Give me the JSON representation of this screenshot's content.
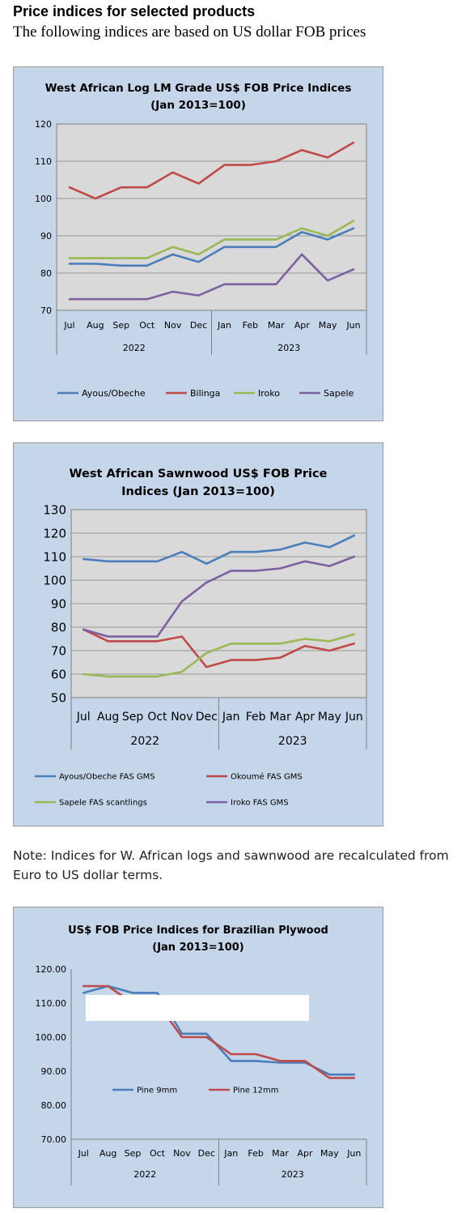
{
  "page": {
    "heading": "Price indices for selected products",
    "subheading": "The following indices are based on US dollar FOB prices",
    "note": "Note: Indices for W. African logs and sawnwood are recalculated from Euro to US dollar terms."
  },
  "chart_data": [
    {
      "type": "line",
      "title_line1": "West African Log LM Grade US$ FOB Price Indices",
      "title_line2": "(Jan 2013=100)",
      "categories": [
        "Jul",
        "Aug",
        "Sep",
        "Oct",
        "Nov",
        "Dec",
        "Jan",
        "Feb",
        "Mar",
        "Apr",
        "May",
        "Jun"
      ],
      "year_groups": [
        {
          "label": "2022",
          "span": 6
        },
        {
          "label": "2023",
          "span": 6
        }
      ],
      "ylim": [
        70,
        120
      ],
      "yticks": [
        "70",
        "80",
        "90",
        "100",
        "110",
        "120"
      ],
      "grid": true,
      "legend": "bottom",
      "series": [
        {
          "name": "Ayous/Obeche",
          "color": "#4a7ebb",
          "values": [
            82.5,
            82.5,
            82,
            82,
            85,
            83,
            87,
            87,
            87,
            91,
            89,
            92
          ]
        },
        {
          "name": "Bilinga",
          "color": "#be4b48",
          "values": [
            103,
            100,
            103,
            103,
            107,
            104,
            109,
            109,
            110,
            113,
            111,
            115
          ]
        },
        {
          "name": "Iroko",
          "color": "#98b954",
          "values": [
            84,
            84,
            84,
            84,
            87,
            85,
            89,
            89,
            89,
            92,
            90,
            94
          ]
        },
        {
          "name": "Sapele",
          "color": "#7d60a0",
          "values": [
            73,
            73,
            73,
            73,
            75,
            74,
            77,
            77,
            77,
            85,
            78,
            81
          ]
        }
      ]
    },
    {
      "type": "line",
      "title_line1": "West African Sawnwood US$ FOB Price",
      "title_line2": "Indices (Jan 2013=100)",
      "categories": [
        "Jul",
        "Aug",
        "Sep",
        "Oct",
        "Nov",
        "Dec",
        "Jan",
        "Feb",
        "Mar",
        "Apr",
        "May",
        "Jun"
      ],
      "year_groups": [
        {
          "label": "2022",
          "span": 6
        },
        {
          "label": "2023",
          "span": 6
        }
      ],
      "ylim": [
        50,
        130
      ],
      "yticks": [
        "50",
        "60",
        "70",
        "80",
        "90",
        "100",
        "110",
        "120",
        "130"
      ],
      "grid": true,
      "legend": "bottom",
      "series": [
        {
          "name": "Ayous/Obeche  FAS GMS",
          "color": "#4a7ebb",
          "values": [
            109,
            108,
            108,
            108,
            112,
            107,
            112,
            112,
            113,
            116,
            114,
            119
          ]
        },
        {
          "name": "Okoumé  FAS GMS",
          "color": "#be4b48",
          "values": [
            79,
            74,
            74,
            74,
            76,
            63,
            66,
            66,
            67,
            72,
            70,
            73
          ]
        },
        {
          "name": "Sapele FAS scantlings",
          "color": "#98b954",
          "values": [
            60,
            59,
            59,
            59,
            61,
            69,
            73,
            73,
            73,
            75,
            74,
            77
          ]
        },
        {
          "name": "Iroko FAS GMS",
          "color": "#7d60a0",
          "values": [
            79,
            76,
            76,
            76,
            91,
            99,
            104,
            104,
            105,
            108,
            106,
            110
          ]
        }
      ]
    },
    {
      "type": "line",
      "title_line1": "US$ FOB Price Indices for Brazilian Plywood",
      "title_line2": "(Jan 2013=100)",
      "categories": [
        "Jul",
        "Aug",
        "Sep",
        "Oct",
        "Nov",
        "Dec",
        "Jan",
        "Feb",
        "Mar",
        "Apr",
        "May",
        "Jun"
      ],
      "year_groups": [
        {
          "label": "2022",
          "span": 6
        },
        {
          "label": "2023",
          "span": 6
        }
      ],
      "ylim": [
        70,
        120
      ],
      "yticks": [
        "70.00",
        "80.00",
        "90.00",
        "100.00",
        "110.00",
        "120.00"
      ],
      "grid": false,
      "legend": "inside-bottom",
      "series": [
        {
          "name": "Pine 9mm",
          "color": "#4a7ebb",
          "values": [
            113,
            115,
            113,
            113,
            101,
            101,
            93,
            93,
            92.5,
            92.5,
            89,
            89
          ]
        },
        {
          "name": "Pine 12mm",
          "color": "#be4b48",
          "values": [
            115,
            115,
            110,
            110,
            100,
            100,
            95,
            95,
            93,
            93,
            88,
            88
          ]
        }
      ]
    }
  ]
}
